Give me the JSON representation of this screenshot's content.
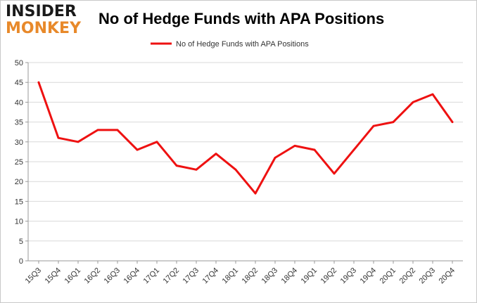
{
  "brand": {
    "logo_line1": "INSIDER",
    "logo_line2": "MONKEY",
    "logo_color_top": "#1a1a1a",
    "logo_color_bottom": "#e8892a"
  },
  "chart_data": {
    "type": "line",
    "title": "No of Hedge Funds with APA Positions",
    "xlabel": "",
    "ylabel": "",
    "categories": [
      "15Q3",
      "15Q4",
      "16Q1",
      "16Q2",
      "16Q3",
      "16Q4",
      "17Q1",
      "17Q2",
      "17Q3",
      "17Q4",
      "18Q1",
      "18Q2",
      "18Q3",
      "18Q4",
      "19Q1",
      "19Q2",
      "19Q3",
      "19Q4",
      "20Q1",
      "20Q2",
      "20Q3",
      "20Q4"
    ],
    "series": [
      {
        "name": "No of Hedge Funds with APA Positions",
        "color": "#ee1111",
        "values": [
          45,
          31,
          30,
          33,
          33,
          28,
          30,
          24,
          23,
          27,
          23,
          17,
          26,
          29,
          28,
          22,
          28,
          34,
          35,
          40,
          42,
          35
        ]
      }
    ],
    "ylim": [
      0,
      50
    ],
    "yticks": [
      0,
      5,
      10,
      15,
      20,
      25,
      30,
      35,
      40,
      45,
      50
    ],
    "grid": true,
    "legend_position": "top-center"
  }
}
